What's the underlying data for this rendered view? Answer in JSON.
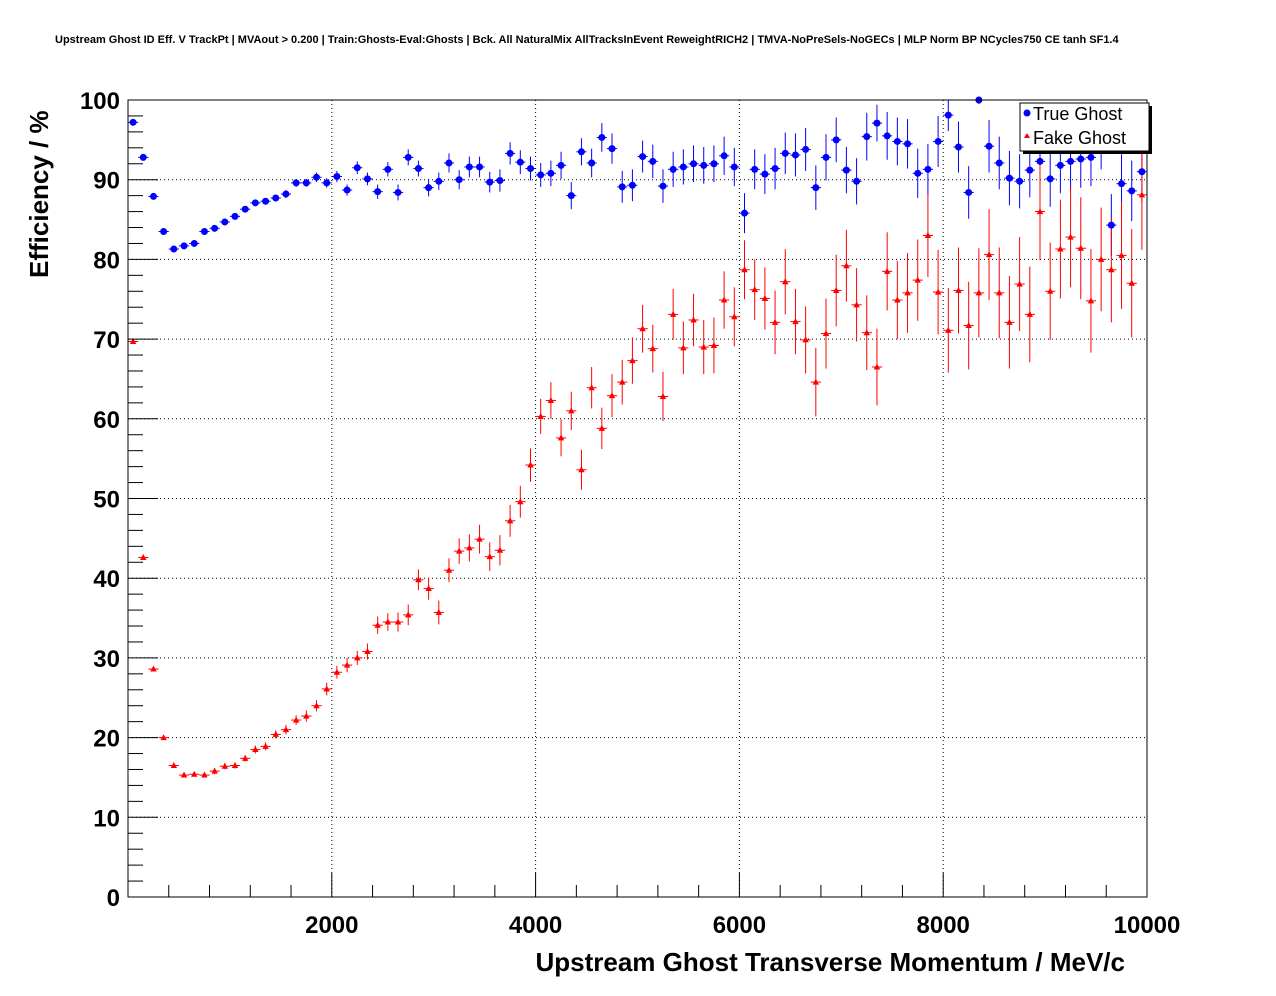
{
  "chart_data": {
    "type": "scatter",
    "title": "Upstream Ghost ID Eff. V TrackPt | MVAout > 0.200 | Train:Ghosts-Eval:Ghosts | Bck. All NaturalMix AllTracksInEvent ReweightRICH2 | TMVA-NoPreSels-NoGECs | MLP Norm BP NCycles750 CE tanh SF1.4",
    "xlabel": "Upstream Ghost Transverse Momentum / MeV/c",
    "ylabel": "Efficiency / %",
    "xlim": [
      0,
      10000
    ],
    "ylim": [
      0,
      100
    ],
    "xticks": [
      "2000",
      "4000",
      "6000",
      "8000",
      "10000"
    ],
    "yticks": [
      "0",
      "10",
      "20",
      "30",
      "40",
      "50",
      "60",
      "70",
      "80",
      "90",
      "100"
    ],
    "grid": true,
    "legend_position": "top-right",
    "series": [
      {
        "name": "True Ghost",
        "color": "#0000ff",
        "marker": "circle",
        "x": [
          50,
          150,
          250,
          350,
          450,
          550,
          650,
          750,
          850,
          950,
          1050,
          1150,
          1250,
          1350,
          1450,
          1550,
          1650,
          1750,
          1850,
          1950,
          2050,
          2150,
          2250,
          2350,
          2450,
          2550,
          2650,
          2750,
          2850,
          2950,
          3050,
          3150,
          3250,
          3350,
          3450,
          3550,
          3650,
          3750,
          3850,
          3950,
          4050,
          4150,
          4250,
          4350,
          4450,
          4550,
          4650,
          4750,
          4850,
          4950,
          5050,
          5150,
          5250,
          5350,
          5450,
          5550,
          5650,
          5750,
          5850,
          5950,
          6050,
          6150,
          6250,
          6350,
          6450,
          6550,
          6650,
          6750,
          6850,
          6950,
          7050,
          7150,
          7250,
          7350,
          7450,
          7550,
          7650,
          7750,
          7850,
          7950,
          8050,
          8150,
          8250,
          8350,
          8450,
          8550,
          8650,
          8750,
          8850,
          8950,
          9050,
          9150,
          9250,
          9350,
          9450,
          9550,
          9650,
          9750,
          9850,
          9950
        ],
        "y": [
          97.2,
          92.8,
          87.9,
          83.5,
          81.3,
          81.7,
          82.0,
          83.5,
          83.9,
          84.7,
          85.4,
          86.3,
          87.1,
          87.3,
          87.7,
          88.2,
          89.6,
          89.6,
          90.3,
          89.6,
          90.4,
          88.7,
          91.5,
          90.1,
          88.5,
          91.3,
          88.4,
          92.8,
          91.4,
          89.0,
          89.8,
          92.1,
          90.0,
          91.6,
          91.6,
          89.7,
          89.9,
          93.3,
          92.2,
          91.4,
          90.6,
          90.8,
          91.8,
          88.0,
          93.5,
          92.1,
          95.3,
          93.9,
          89.1,
          89.3,
          92.9,
          92.3,
          89.2,
          91.3,
          91.6,
          92.0,
          91.8,
          92.0,
          93.0,
          91.6,
          85.8,
          91.3,
          90.7,
          91.4,
          93.3,
          93.1,
          93.8,
          89.0,
          92.8,
          95.0,
          91.2,
          89.8,
          95.4,
          97.1,
          95.5,
          94.8,
          94.5,
          90.8,
          91.3,
          94.8,
          98.1,
          94.1,
          88.4,
          100.0,
          94.2,
          92.1,
          90.2,
          89.8,
          91.2,
          92.3,
          90.1,
          91.8,
          92.3,
          92.6,
          92.8,
          95.0,
          84.3,
          89.5,
          88.6,
          91.0
        ],
        "yerr": [
          0.3,
          0.3,
          0.3,
          0.3,
          0.3,
          0.3,
          0.3,
          0.3,
          0.3,
          0.3,
          0.3,
          0.4,
          0.4,
          0.4,
          0.4,
          0.5,
          0.5,
          0.5,
          0.6,
          0.6,
          0.7,
          0.7,
          0.8,
          0.8,
          0.9,
          0.9,
          1.0,
          1.0,
          1.0,
          1.1,
          1.1,
          1.2,
          1.2,
          1.3,
          1.3,
          1.3,
          1.4,
          1.4,
          1.5,
          1.5,
          1.5,
          1.6,
          1.7,
          1.7,
          1.7,
          1.8,
          1.8,
          1.9,
          2.0,
          2.0,
          2.0,
          2.1,
          2.1,
          2.2,
          2.2,
          2.3,
          2.3,
          2.3,
          2.4,
          2.4,
          2.5,
          2.5,
          2.5,
          2.6,
          2.6,
          2.7,
          2.7,
          2.8,
          2.9,
          2.8,
          2.9,
          2.9,
          3.0,
          2.3,
          3.0,
          3.0,
          3.1,
          3.1,
          3.2,
          3.2,
          2.0,
          3.2,
          3.3,
          0.5,
          3.3,
          3.3,
          3.4,
          3.4,
          3.4,
          3.5,
          3.5,
          3.5,
          3.6,
          3.6,
          3.6,
          3.7,
          3.9,
          3.7,
          3.8,
          3.8
        ]
      },
      {
        "name": "Fake Ghost",
        "color": "#ff0000",
        "marker": "triangle",
        "x": [
          50,
          150,
          250,
          350,
          450,
          550,
          650,
          750,
          850,
          950,
          1050,
          1150,
          1250,
          1350,
          1450,
          1550,
          1650,
          1750,
          1850,
          1950,
          2050,
          2150,
          2250,
          2350,
          2450,
          2550,
          2650,
          2750,
          2850,
          2950,
          3050,
          3150,
          3250,
          3350,
          3450,
          3550,
          3650,
          3750,
          3850,
          3950,
          4050,
          4150,
          4250,
          4350,
          4450,
          4550,
          4650,
          4750,
          4850,
          4950,
          5050,
          5150,
          5250,
          5350,
          5450,
          5550,
          5650,
          5750,
          5850,
          5950,
          6050,
          6150,
          6250,
          6350,
          6450,
          6550,
          6650,
          6750,
          6850,
          6950,
          7050,
          7150,
          7250,
          7350,
          7450,
          7550,
          7650,
          7750,
          7850,
          7950,
          8050,
          8150,
          8250,
          8350,
          8450,
          8550,
          8650,
          8750,
          8850,
          8950,
          9050,
          9150,
          9250,
          9350,
          9450,
          9550,
          9650,
          9750,
          9850,
          9950
        ],
        "y": [
          69.7,
          42.6,
          28.6,
          20.0,
          16.5,
          15.3,
          15.4,
          15.3,
          15.8,
          16.4,
          16.5,
          17.4,
          18.5,
          18.9,
          20.4,
          21.0,
          22.2,
          22.7,
          24.0,
          26.1,
          28.2,
          29.1,
          30.0,
          30.8,
          34.1,
          34.5,
          34.5,
          35.4,
          39.8,
          38.7,
          35.7,
          41.0,
          43.4,
          43.8,
          44.9,
          42.7,
          43.5,
          47.2,
          49.6,
          54.2,
          60.3,
          62.3,
          57.6,
          61.0,
          53.6,
          63.9,
          58.8,
          62.9,
          64.6,
          67.3,
          71.3,
          68.8,
          62.8,
          73.1,
          68.9,
          72.4,
          69.0,
          69.2,
          74.9,
          72.8,
          78.7,
          76.2,
          75.1,
          72.1,
          77.2,
          72.2,
          69.9,
          64.6,
          70.7,
          76.1,
          79.2,
          74.3,
          70.8,
          66.5,
          78.5,
          74.9,
          75.8,
          77.4,
          83.0,
          75.9,
          71.1,
          76.1,
          71.7,
          75.8,
          80.6,
          75.8,
          72.1,
          76.9,
          73.1,
          86.0,
          76.0,
          81.3,
          82.8,
          81.4,
          74.8,
          80.0,
          78.7,
          80.5,
          77.0,
          88.1
        ],
        "yerr": [
          0.3,
          0.3,
          0.3,
          0.3,
          0.3,
          0.3,
          0.3,
          0.3,
          0.4,
          0.4,
          0.4,
          0.4,
          0.5,
          0.5,
          0.5,
          0.6,
          0.6,
          0.7,
          0.7,
          0.8,
          0.8,
          0.9,
          0.9,
          1.0,
          1.1,
          1.1,
          1.2,
          1.3,
          1.3,
          1.4,
          1.5,
          1.5,
          1.6,
          1.7,
          1.8,
          1.8,
          1.9,
          2.0,
          2.0,
          2.1,
          2.2,
          2.3,
          2.3,
          2.4,
          2.5,
          2.6,
          2.6,
          2.7,
          2.8,
          2.9,
          3.0,
          3.0,
          3.1,
          3.2,
          3.3,
          3.3,
          3.4,
          3.5,
          3.6,
          3.7,
          3.7,
          3.8,
          3.9,
          4.0,
          4.1,
          4.1,
          4.2,
          4.3,
          4.4,
          4.5,
          4.5,
          4.6,
          4.7,
          4.8,
          4.9,
          4.9,
          5.0,
          5.1,
          5.2,
          5.3,
          5.3,
          5.4,
          5.5,
          5.6,
          5.7,
          5.7,
          5.8,
          5.9,
          6.0,
          6.1,
          6.1,
          6.2,
          6.3,
          6.4,
          6.5,
          6.5,
          6.6,
          6.7,
          6.8,
          6.9
        ]
      }
    ]
  }
}
